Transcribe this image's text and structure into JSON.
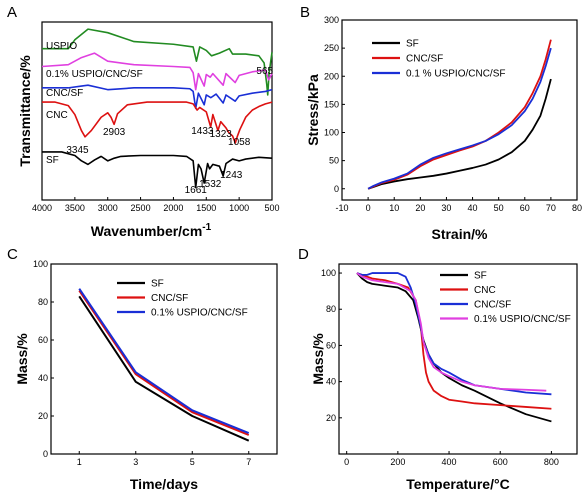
{
  "chart_data": [
    {
      "id": "A",
      "panel_label": "A",
      "type": "line",
      "xlabel": "Wavenumber/cm",
      "xlabel_sup": "-1",
      "ylabel": "Transmittance/%",
      "xlim": [
        4000,
        500
      ],
      "xticks": [
        4000,
        3500,
        3000,
        2500,
        2000,
        1500,
        1000,
        500
      ],
      "colors": {
        "SF": "#000000",
        "CNC": "#dd1111",
        "CNC/SF": "#1a2fd6",
        "0.1% USPIO/CNC/SF": "#e040e0",
        "USPIO": "#228b22"
      },
      "series": [
        {
          "name": "USPIO",
          "label": "USPIO",
          "color": "#228b22",
          "x": [
            4000,
            3600,
            3500,
            3300,
            3000,
            2600,
            2000,
            1700,
            1650,
            1600,
            1500,
            1420,
            1300,
            1150,
            1100,
            900,
            700,
            620,
            580,
            565,
            545,
            500
          ],
          "y": [
            10,
            10,
            11,
            12.2,
            11.8,
            10.8,
            10.5,
            10.2,
            8.6,
            10.2,
            9.8,
            9.2,
            9.5,
            10,
            9.4,
            9.4,
            9.2,
            8.4,
            6,
            4.8,
            7.2,
            9.6
          ]
        },
        {
          "name": "0.1% USPIO/CNC/SF",
          "label": "0.1% USPIO/CNC/SF",
          "color": "#e040e0",
          "x": [
            4000,
            3600,
            3400,
            3200,
            3000,
            2600,
            2000,
            1750,
            1700,
            1661,
            1620,
            1532,
            1500,
            1440,
            1400,
            1243,
            1200,
            1060,
            1000,
            800,
            600,
            550,
            500
          ],
          "y": [
            8,
            8.2,
            9,
            9.5,
            8.6,
            8.2,
            8,
            7.9,
            7.3,
            5.4,
            7.2,
            5.8,
            7.1,
            6.8,
            7.2,
            5.9,
            7.2,
            6.2,
            7,
            7.4,
            7.6,
            6.5,
            7.2
          ]
        },
        {
          "name": "CNC/SF",
          "label": "CNC/SF",
          "color": "#1a2fd6",
          "x": [
            4000,
            3600,
            3400,
            3300,
            3000,
            2600,
            2000,
            1750,
            1700,
            1661,
            1620,
            1532,
            1500,
            1430,
            1350,
            1243,
            1200,
            1060,
            1000,
            800,
            600,
            500
          ],
          "y": [
            5.6,
            5.6,
            5.8,
            5.9,
            5.4,
            5.6,
            5.6,
            5.5,
            5.2,
            3.3,
            5,
            3.7,
            4.8,
            4.5,
            4.9,
            3.9,
            4.8,
            4.1,
            4.7,
            5,
            5.2,
            5.4
          ]
        },
        {
          "name": "CNC",
          "label": "CNC",
          "color": "#dd1111",
          "x": [
            4000,
            3800,
            3600,
            3500,
            3400,
            3345,
            3250,
            3100,
            3000,
            2950,
            2903,
            2850,
            2700,
            2400,
            2000,
            1800,
            1700,
            1640,
            1600,
            1500,
            1433,
            1400,
            1370,
            1323,
            1280,
            1200,
            1160,
            1100,
            1058,
            1030,
            990,
            900,
            800,
            700,
            600,
            500
          ],
          "y": [
            4,
            4,
            3.6,
            2.6,
            0.8,
            0.1,
            0.8,
            2.3,
            2.8,
            2.3,
            1.5,
            2.7,
            3.7,
            4,
            4,
            4,
            3.8,
            3.1,
            3.4,
            2.9,
            1.2,
            2.6,
            1.9,
            0.8,
            1.8,
            1.1,
            0.6,
            0.2,
            -0.6,
            0.1,
            0.9,
            2.3,
            3.1,
            3.5,
            3.8,
            4
          ]
        },
        {
          "name": "SF",
          "label": "SF",
          "color": "#000000",
          "x": [
            4000,
            3700,
            3500,
            3400,
            3300,
            3200,
            3100,
            3000,
            2900,
            2800,
            2500,
            2000,
            1800,
            1700,
            1661,
            1620,
            1580,
            1532,
            1480,
            1450,
            1400,
            1300,
            1243,
            1200,
            1100,
            1000,
            900,
            700,
            500
          ],
          "y": [
            -1.6,
            -1.6,
            -2,
            -2.6,
            -3,
            -2.5,
            -2.1,
            -2.6,
            -2.3,
            -2.1,
            -2,
            -2,
            -2.1,
            -2.6,
            -5.6,
            -3,
            -3.5,
            -5.1,
            -2.9,
            -3.5,
            -3,
            -3.2,
            -4.3,
            -2.9,
            -2.4,
            -2.6,
            -2.4,
            -2.2,
            -2.3
          ]
        }
      ],
      "annotations": [
        {
          "text": "3345",
          "x": 3345
        },
        {
          "text": "2903",
          "x": 2903
        },
        {
          "text": "1433",
          "x": 1433
        },
        {
          "text": "1323",
          "x": 1323
        },
        {
          "text": "1058",
          "x": 1058
        },
        {
          "text": "1661",
          "x": 1661
        },
        {
          "text": "1532",
          "x": 1532
        },
        {
          "text": "1243",
          "x": 1243
        },
        {
          "text": "565",
          "x": 565
        }
      ]
    },
    {
      "id": "B",
      "panel_label": "B",
      "type": "line",
      "xlabel": "Strain/%",
      "ylabel": "Stress/kPa",
      "xlim": [
        -10,
        80
      ],
      "ylim": [
        -20,
        300
      ],
      "xticks": [
        -10,
        0,
        10,
        20,
        30,
        40,
        50,
        60,
        70,
        80
      ],
      "yticks": [
        0,
        50,
        100,
        150,
        200,
        250,
        300
      ],
      "legend_position": "top-left",
      "series": [
        {
          "name": "SF",
          "color": "#000000",
          "x": [
            0,
            2,
            5,
            10,
            15,
            20,
            25,
            30,
            35,
            40,
            45,
            50,
            55,
            60,
            63,
            66,
            68,
            70
          ],
          "y": [
            0,
            3,
            8,
            13,
            17,
            20,
            23,
            27,
            32,
            37,
            43,
            52,
            65,
            85,
            105,
            130,
            160,
            195
          ]
        },
        {
          "name": "CNC/SF",
          "color": "#dd1111",
          "x": [
            0,
            2,
            5,
            10,
            15,
            20,
            25,
            30,
            35,
            40,
            45,
            50,
            55,
            60,
            63,
            66,
            68,
            70
          ],
          "y": [
            0,
            4,
            10,
            16,
            25,
            40,
            52,
            60,
            68,
            75,
            85,
            100,
            118,
            145,
            170,
            200,
            230,
            265
          ]
        },
        {
          "name": "0.1 % USPIO/CNC/SF",
          "color": "#1a2fd6",
          "x": [
            0,
            2,
            5,
            10,
            15,
            20,
            25,
            30,
            35,
            40,
            45,
            50,
            55,
            60,
            63,
            66,
            68,
            70
          ],
          "y": [
            0,
            5,
            11,
            18,
            27,
            43,
            55,
            63,
            70,
            77,
            85,
            97,
            113,
            138,
            160,
            190,
            218,
            250
          ]
        }
      ]
    },
    {
      "id": "C",
      "panel_label": "C",
      "type": "line",
      "xlabel": "Time/days",
      "ylabel": "Mass/%",
      "categories": [
        "1",
        "3",
        "5",
        "7"
      ],
      "x": [
        1,
        3,
        5,
        7
      ],
      "xlim": [
        0,
        8
      ],
      "ylim": [
        0,
        100
      ],
      "yticks": [
        0,
        20,
        40,
        60,
        80,
        100
      ],
      "legend_position": "top-right",
      "series": [
        {
          "name": "SF",
          "color": "#000000",
          "values": [
            83,
            38,
            20,
            7
          ]
        },
        {
          "name": "CNC/SF",
          "color": "#dd1111",
          "values": [
            86,
            42,
            22,
            10
          ]
        },
        {
          "name": "0.1% USPIO/CNC/SF",
          "color": "#1a2fd6",
          "values": [
            87,
            43,
            23,
            11
          ]
        }
      ]
    },
    {
      "id": "D",
      "panel_label": "D",
      "type": "line",
      "xlabel": "Temperature/",
      "xlabel_unit": "°C",
      "ylabel": "Mass/%",
      "xlim": [
        -30,
        900
      ],
      "ylim": [
        0,
        105
      ],
      "xticks": [
        0,
        200,
        400,
        600,
        800
      ],
      "yticks": [
        20,
        40,
        60,
        80,
        100
      ],
      "legend_position": "top-right",
      "series": [
        {
          "name": "SF",
          "color": "#000000",
          "x": [
            40,
            60,
            80,
            100,
            150,
            200,
            230,
            260,
            280,
            300,
            320,
            340,
            370,
            400,
            450,
            500,
            600,
            700,
            800
          ],
          "y": [
            100,
            97,
            95,
            94,
            93,
            92,
            90,
            85,
            75,
            63,
            55,
            50,
            45,
            42,
            38,
            35,
            28,
            22,
            18
          ]
        },
        {
          "name": "CNC",
          "color": "#dd1111",
          "x": [
            40,
            60,
            80,
            100,
            150,
            200,
            240,
            270,
            290,
            300,
            310,
            320,
            340,
            370,
            400,
            450,
            500,
            600,
            700,
            800
          ],
          "y": [
            100,
            99,
            98,
            97,
            96,
            94,
            92,
            85,
            70,
            55,
            45,
            40,
            35,
            32,
            30,
            29,
            28,
            27,
            26,
            25
          ]
        },
        {
          "name": "CNC/SF",
          "color": "#1a2fd6",
          "x": [
            40,
            60,
            80,
            100,
            150,
            200,
            230,
            250,
            270,
            290,
            300,
            320,
            340,
            370,
            400,
            450,
            500,
            600,
            700,
            800
          ],
          "y": [
            100,
            99,
            99,
            100,
            100,
            100,
            98,
            92,
            83,
            70,
            62,
            55,
            50,
            47,
            45,
            41,
            38,
            36,
            34,
            33
          ]
        },
        {
          "name": "0.1% USPIO/CNC/SF",
          "color": "#e040e0",
          "x": [
            40,
            60,
            80,
            100,
            150,
            200,
            250,
            270,
            290,
            300,
            320,
            340,
            370,
            400,
            450,
            500,
            600,
            700,
            780
          ],
          "y": [
            100,
            98,
            97,
            96,
            95,
            94,
            90,
            85,
            72,
            62,
            53,
            48,
            45,
            43,
            40,
            38,
            36,
            35.5,
            35
          ]
        }
      ]
    }
  ]
}
